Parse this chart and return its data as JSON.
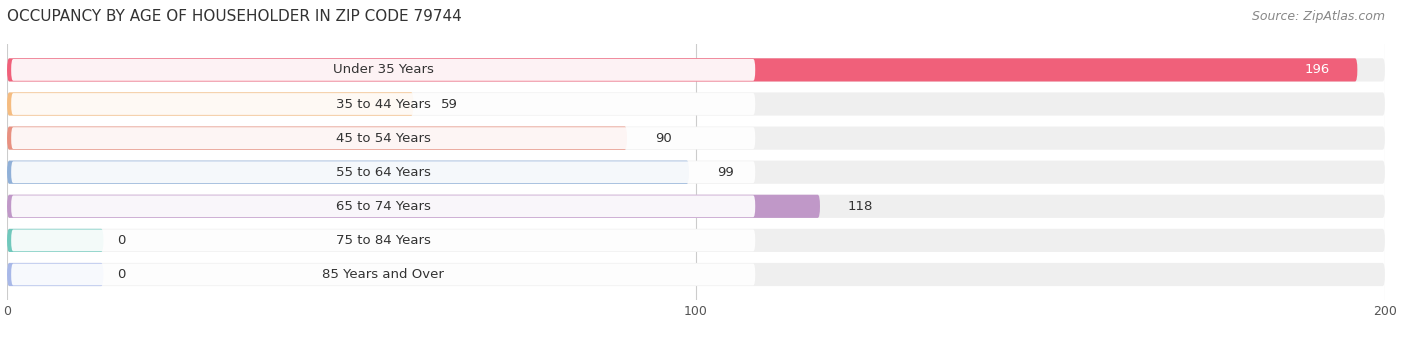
{
  "title": "OCCUPANCY BY AGE OF HOUSEHOLDER IN ZIP CODE 79744",
  "source": "Source: ZipAtlas.com",
  "categories": [
    "Under 35 Years",
    "35 to 44 Years",
    "45 to 54 Years",
    "55 to 64 Years",
    "65 to 74 Years",
    "75 to 84 Years",
    "85 Years and Over"
  ],
  "values": [
    196,
    59,
    90,
    99,
    118,
    0,
    0
  ],
  "bar_colors": [
    "#F0607A",
    "#F5BC80",
    "#E89080",
    "#90B0D8",
    "#C098C8",
    "#70C8BC",
    "#A8B8E8"
  ],
  "bar_bg_color": "#EFEFEF",
  "label_bg_color": "#FFFFFF",
  "xlim": [
    0,
    200
  ],
  "xticks": [
    0,
    100,
    200
  ],
  "title_fontsize": 11,
  "source_fontsize": 9,
  "label_fontsize": 9.5,
  "value_fontsize": 9.5,
  "bar_height": 0.68,
  "bar_gap": 0.32,
  "figsize": [
    14.06,
    3.41
  ],
  "dpi": 100
}
